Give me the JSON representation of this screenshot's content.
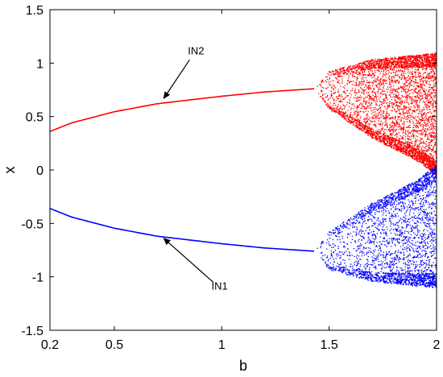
{
  "chart_data": {
    "type": "scatter",
    "title": "",
    "xlabel": "b",
    "ylabel": "x",
    "xlim": [
      0.2,
      2.0
    ],
    "ylim": [
      -1.5,
      1.5
    ],
    "xticks": [
      0.2,
      0.5,
      1,
      1.5,
      2
    ],
    "xtick_labels": [
      "0.2",
      "0.5",
      "1",
      "1.5",
      "2"
    ],
    "yticks": [
      -1.5,
      -1,
      -0.5,
      0,
      0.5,
      1,
      1.5
    ],
    "ytick_labels": [
      "-1.5",
      "-1",
      "-0.5",
      "0",
      "0.5",
      "1",
      "1.5"
    ],
    "grid": false,
    "legend": "none",
    "series": [
      {
        "color": "#ff0000",
        "stable_branch": [
          [
            0.2,
            0.36
          ],
          [
            0.3,
            0.44
          ],
          [
            0.5,
            0.545
          ],
          [
            0.7,
            0.62
          ],
          [
            1.0,
            0.69
          ],
          [
            1.2,
            0.73
          ],
          [
            1.43,
            0.76
          ]
        ],
        "chaotic_region": {
          "b_start": 1.43,
          "b_end": 2.0,
          "upper": [
            [
              1.43,
              0.76
            ],
            [
              1.5,
              0.93
            ],
            [
              1.7,
              1.04
            ],
            [
              1.9,
              1.08
            ],
            [
              2.0,
              1.1
            ]
          ],
          "lower": [
            [
              1.43,
              0.76
            ],
            [
              1.5,
              0.57
            ],
            [
              1.7,
              0.3
            ],
            [
              1.9,
              0.1
            ],
            [
              2.0,
              -0.05
            ]
          ]
        }
      },
      {
        "color": "#0000ff",
        "stable_branch": [
          [
            0.2,
            -0.36
          ],
          [
            0.3,
            -0.44
          ],
          [
            0.5,
            -0.545
          ],
          [
            0.7,
            -0.62
          ],
          [
            1.0,
            -0.69
          ],
          [
            1.2,
            -0.73
          ],
          [
            1.43,
            -0.76
          ]
        ],
        "chaotic_region": {
          "b_start": 1.43,
          "b_end": 2.0,
          "upper": [
            [
              1.43,
              -0.76
            ],
            [
              1.5,
              -0.57
            ],
            [
              1.7,
              -0.3
            ],
            [
              1.9,
              -0.1
            ],
            [
              2.0,
              0.05
            ]
          ],
          "lower": [
            [
              1.43,
              -0.76
            ],
            [
              1.5,
              -0.93
            ],
            [
              1.7,
              -1.04
            ],
            [
              1.9,
              -1.08
            ],
            [
              2.0,
              -1.1
            ]
          ]
        }
      }
    ],
    "annotations": [
      {
        "text": "IN2",
        "text_at": [
          0.88,
          1.08
        ],
        "arrow_from": [
          0.85,
          1.03
        ],
        "arrow_to": [
          0.73,
          0.67
        ]
      },
      {
        "text": "IN1",
        "text_at": [
          0.99,
          -1.12
        ],
        "arrow_from": [
          0.96,
          -1.05
        ],
        "arrow_to": [
          0.73,
          -0.64
        ]
      }
    ]
  }
}
